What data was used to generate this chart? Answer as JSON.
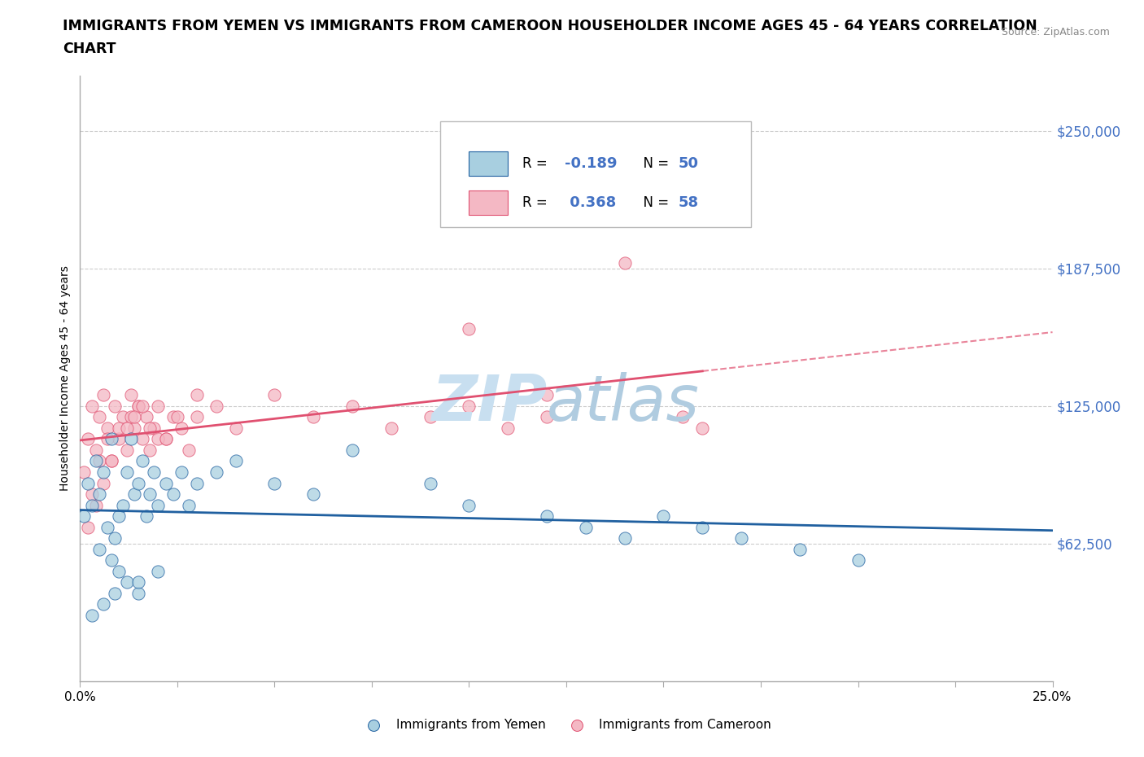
{
  "title_line1": "IMMIGRANTS FROM YEMEN VS IMMIGRANTS FROM CAMEROON HOUSEHOLDER INCOME AGES 45 - 64 YEARS CORRELATION",
  "title_line2": "CHART",
  "source": "Source: ZipAtlas.com",
  "ylabel": "Householder Income Ages 45 - 64 years",
  "xlim": [
    0.0,
    0.25
  ],
  "ylim": [
    0,
    275000
  ],
  "yticks": [
    62500,
    125000,
    187500,
    250000
  ],
  "ytick_labels": [
    "$62,500",
    "$125,000",
    "$187,500",
    "$250,000"
  ],
  "xticks": [
    0.0,
    0.025,
    0.05,
    0.075,
    0.1,
    0.125,
    0.15,
    0.175,
    0.2,
    0.225,
    0.25
  ],
  "xtick_labels_show": [
    "0.0%",
    "",
    "",
    "",
    "",
    "",
    "",
    "",
    "",
    "",
    "25.0%"
  ],
  "color_yemen": "#a8cfe0",
  "color_cameroon": "#f4b8c4",
  "trendline_yemen": "#2060a0",
  "trendline_cameroon": "#e05070",
  "legend_R1_label": "R = ",
  "legend_R1_val": "-0.189",
  "legend_N1_label": "N = ",
  "legend_N1_val": "50",
  "legend_R2_label": "R = ",
  "legend_R2_val": "0.368",
  "legend_N2_label": "N = ",
  "legend_N2_val": "58",
  "blue_text_color": "#4472c4",
  "watermark_zip_color": "#d0dff0",
  "watermark_atlas_color": "#b8cce0",
  "yemen_x": [
    0.001,
    0.002,
    0.003,
    0.004,
    0.005,
    0.006,
    0.007,
    0.008,
    0.009,
    0.01,
    0.011,
    0.012,
    0.013,
    0.014,
    0.015,
    0.016,
    0.017,
    0.018,
    0.019,
    0.02,
    0.022,
    0.024,
    0.026,
    0.028,
    0.03,
    0.035,
    0.04,
    0.05,
    0.06,
    0.07,
    0.09,
    0.1,
    0.12,
    0.13,
    0.14,
    0.15,
    0.16,
    0.17,
    0.185,
    0.2,
    0.005,
    0.008,
    0.01,
    0.012,
    0.015,
    0.003,
    0.006,
    0.009,
    0.015,
    0.02
  ],
  "yemen_y": [
    75000,
    90000,
    80000,
    100000,
    85000,
    95000,
    70000,
    110000,
    65000,
    75000,
    80000,
    95000,
    110000,
    85000,
    90000,
    100000,
    75000,
    85000,
    95000,
    80000,
    90000,
    85000,
    95000,
    80000,
    90000,
    95000,
    100000,
    90000,
    85000,
    105000,
    90000,
    80000,
    75000,
    70000,
    65000,
    75000,
    70000,
    65000,
    60000,
    55000,
    60000,
    55000,
    50000,
    45000,
    40000,
    30000,
    35000,
    40000,
    45000,
    50000
  ],
  "cameroon_x": [
    0.001,
    0.002,
    0.003,
    0.004,
    0.005,
    0.006,
    0.007,
    0.008,
    0.009,
    0.01,
    0.011,
    0.012,
    0.013,
    0.014,
    0.015,
    0.016,
    0.017,
    0.018,
    0.019,
    0.02,
    0.022,
    0.024,
    0.026,
    0.028,
    0.03,
    0.035,
    0.04,
    0.05,
    0.06,
    0.07,
    0.08,
    0.09,
    0.1,
    0.11,
    0.12,
    0.003,
    0.005,
    0.007,
    0.01,
    0.013,
    0.015,
    0.018,
    0.02,
    0.025,
    0.03,
    0.002,
    0.004,
    0.006,
    0.008,
    0.012,
    0.014,
    0.016,
    0.022,
    0.14,
    0.155,
    0.16,
    0.1,
    0.12
  ],
  "cameroon_y": [
    95000,
    110000,
    125000,
    105000,
    120000,
    130000,
    115000,
    100000,
    125000,
    110000,
    120000,
    105000,
    130000,
    115000,
    125000,
    110000,
    120000,
    105000,
    115000,
    125000,
    110000,
    120000,
    115000,
    105000,
    120000,
    125000,
    115000,
    130000,
    120000,
    125000,
    115000,
    120000,
    125000,
    115000,
    120000,
    85000,
    100000,
    110000,
    115000,
    120000,
    125000,
    115000,
    110000,
    120000,
    130000,
    70000,
    80000,
    90000,
    100000,
    115000,
    120000,
    125000,
    110000,
    190000,
    120000,
    115000,
    160000,
    130000
  ]
}
